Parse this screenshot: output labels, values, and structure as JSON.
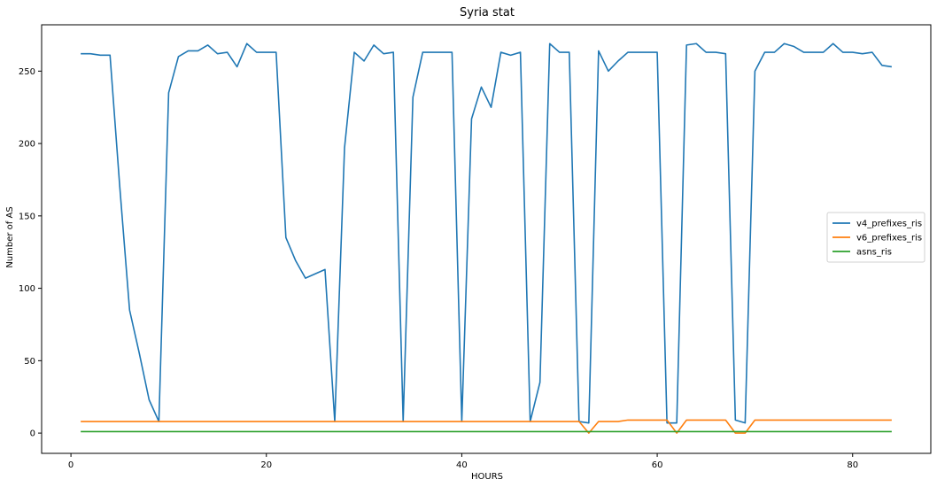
{
  "chart_data": {
    "type": "line",
    "title": "Syria stat",
    "xlabel": "HOURS",
    "ylabel": "Number of AS",
    "xlim": [
      -3,
      88
    ],
    "ylim": [
      -14,
      282
    ],
    "xticks": [
      0,
      20,
      40,
      60,
      80
    ],
    "yticks": [
      0,
      50,
      100,
      150,
      200,
      250
    ],
    "grid": false,
    "legend_position": "center-right",
    "x": [
      1,
      2,
      3,
      4,
      5,
      6,
      7,
      8,
      9,
      10,
      11,
      12,
      13,
      14,
      15,
      16,
      17,
      18,
      19,
      20,
      21,
      22,
      23,
      24,
      25,
      26,
      27,
      28,
      29,
      30,
      31,
      32,
      33,
      34,
      35,
      36,
      37,
      38,
      39,
      40,
      41,
      42,
      43,
      44,
      45,
      46,
      47,
      48,
      49,
      50,
      51,
      52,
      53,
      54,
      55,
      56,
      57,
      58,
      59,
      60,
      61,
      62,
      63,
      64,
      65,
      66,
      67,
      68,
      69,
      70,
      71,
      72,
      73,
      74,
      75,
      76,
      77,
      78,
      79,
      80,
      81,
      82,
      83,
      84
    ],
    "series": [
      {
        "name": "v4_prefixes_ris",
        "color": "#1f77b4",
        "values": [
          262,
          262,
          261,
          261,
          170,
          85,
          55,
          23,
          8,
          235,
          260,
          264,
          264,
          268,
          262,
          263,
          253,
          269,
          263,
          263,
          263,
          135,
          119,
          107,
          110,
          113,
          8,
          197,
          263,
          257,
          268,
          262,
          263,
          8,
          232,
          263,
          263,
          263,
          263,
          8,
          217,
          239,
          225,
          263,
          261,
          263,
          8,
          35,
          269,
          263,
          263,
          8,
          7,
          264,
          250,
          257,
          263,
          263,
          263,
          263,
          7,
          7,
          268,
          269,
          263,
          263,
          262,
          9,
          7,
          250,
          263,
          263,
          269,
          267,
          263,
          263,
          263,
          269,
          263,
          263,
          262,
          263,
          254,
          253
        ]
      },
      {
        "name": "v6_prefixes_ris",
        "color": "#ff7f0e",
        "values": [
          8,
          8,
          8,
          8,
          8,
          8,
          8,
          8,
          8,
          8,
          8,
          8,
          8,
          8,
          8,
          8,
          8,
          8,
          8,
          8,
          8,
          8,
          8,
          8,
          8,
          8,
          8,
          8,
          8,
          8,
          8,
          8,
          8,
          8,
          8,
          8,
          8,
          8,
          8,
          8,
          8,
          8,
          8,
          8,
          8,
          8,
          8,
          8,
          8,
          8,
          8,
          8,
          0,
          8,
          8,
          8,
          9,
          9,
          9,
          9,
          9,
          0,
          9,
          9,
          9,
          9,
          9,
          0,
          0,
          9,
          9,
          9,
          9,
          9,
          9,
          9,
          9,
          9,
          9,
          9,
          9,
          9,
          9,
          9
        ]
      },
      {
        "name": "asns_ris",
        "color": "#2ca02c",
        "values": [
          1,
          1,
          1,
          1,
          1,
          1,
          1,
          1,
          1,
          1,
          1,
          1,
          1,
          1,
          1,
          1,
          1,
          1,
          1,
          1,
          1,
          1,
          1,
          1,
          1,
          1,
          1,
          1,
          1,
          1,
          1,
          1,
          1,
          1,
          1,
          1,
          1,
          1,
          1,
          1,
          1,
          1,
          1,
          1,
          1,
          1,
          1,
          1,
          1,
          1,
          1,
          1,
          1,
          1,
          1,
          1,
          1,
          1,
          1,
          1,
          1,
          1,
          1,
          1,
          1,
          1,
          1,
          1,
          1,
          1,
          1,
          1,
          1,
          1,
          1,
          1,
          1,
          1,
          1,
          1,
          1,
          1,
          1,
          1
        ]
      }
    ]
  }
}
